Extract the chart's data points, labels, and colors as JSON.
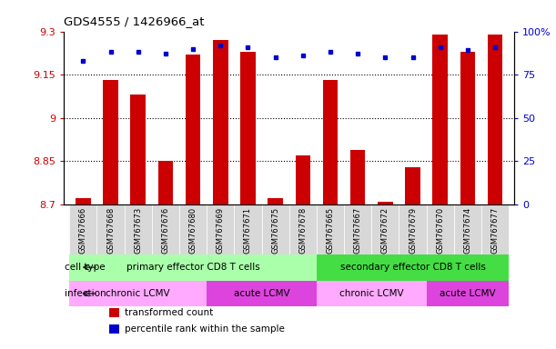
{
  "title": "GDS4555 / 1426966_at",
  "samples": [
    "GSM767666",
    "GSM767668",
    "GSM767673",
    "GSM767676",
    "GSM767680",
    "GSM767669",
    "GSM767671",
    "GSM767675",
    "GSM767678",
    "GSM767665",
    "GSM767667",
    "GSM767672",
    "GSM767679",
    "GSM767670",
    "GSM767674",
    "GSM767677"
  ],
  "transformed_counts": [
    8.72,
    9.13,
    9.08,
    8.85,
    9.22,
    9.27,
    9.23,
    8.72,
    8.87,
    9.13,
    8.89,
    8.71,
    8.83,
    9.29,
    9.23,
    9.29
  ],
  "percentile_ranks": [
    83,
    88,
    88,
    87,
    90,
    92,
    91,
    85,
    86,
    88,
    87,
    85,
    85,
    91,
    89,
    91
  ],
  "ymin": 8.7,
  "ymax": 9.3,
  "yticks": [
    8.7,
    8.85,
    9.0,
    9.15,
    9.3
  ],
  "ytick_labels": [
    "8.7",
    "8.85",
    "9",
    "9.15",
    "9.3"
  ],
  "y2ticks": [
    0,
    25,
    50,
    75,
    100
  ],
  "y2tick_labels": [
    "0",
    "25",
    "50",
    "75",
    "100%"
  ],
  "bar_color": "#cc0000",
  "dot_color": "#0000cc",
  "cell_type_groups": [
    {
      "label": "primary effector CD8 T cells",
      "start": 0,
      "end": 9,
      "color": "#aaffaa"
    },
    {
      "label": "secondary effector CD8 T cells",
      "start": 9,
      "end": 16,
      "color": "#44dd44"
    }
  ],
  "infection_groups": [
    {
      "label": "chronic LCMV",
      "start": 0,
      "end": 5,
      "color": "#ffaaff"
    },
    {
      "label": "acute LCMV",
      "start": 5,
      "end": 9,
      "color": "#dd44dd"
    },
    {
      "label": "chronic LCMV",
      "start": 9,
      "end": 13,
      "color": "#ffaaff"
    },
    {
      "label": "acute LCMV",
      "start": 13,
      "end": 16,
      "color": "#dd44dd"
    }
  ],
  "legend_items": [
    {
      "color": "#cc0000",
      "label": "transformed count"
    },
    {
      "color": "#0000cc",
      "label": "percentile rank within the sample"
    }
  ],
  "xtick_bg_color": "#dddddd",
  "background_color": "#ffffff"
}
